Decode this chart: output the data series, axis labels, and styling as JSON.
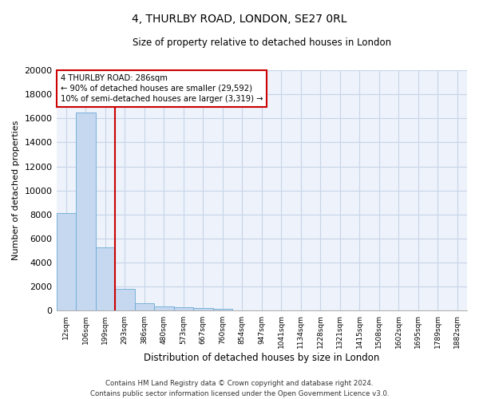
{
  "title": "4, THURLBY ROAD, LONDON, SE27 0RL",
  "subtitle": "Size of property relative to detached houses in London",
  "xlabel": "Distribution of detached houses by size in London",
  "ylabel": "Number of detached properties",
  "categories": [
    "12sqm",
    "106sqm",
    "199sqm",
    "293sqm",
    "386sqm",
    "480sqm",
    "573sqm",
    "667sqm",
    "760sqm",
    "854sqm",
    "947sqm",
    "1041sqm",
    "1134sqm",
    "1228sqm",
    "1321sqm",
    "1415sqm",
    "1508sqm",
    "1602sqm",
    "1695sqm",
    "1789sqm",
    "1882sqm"
  ],
  "bar_heights": [
    8100,
    16500,
    5300,
    1850,
    650,
    350,
    270,
    215,
    195,
    0,
    0,
    0,
    0,
    0,
    0,
    0,
    0,
    0,
    0,
    0,
    0
  ],
  "bar_color": "#c5d8f0",
  "bar_edge_color": "#6aaad4",
  "vline_x": 2.5,
  "vline_color": "#cc0000",
  "annotation_text": "4 THURLBY ROAD: 286sqm\n← 90% of detached houses are smaller (29,592)\n10% of semi-detached houses are larger (3,319) →",
  "annotation_box_color": "#ffffff",
  "annotation_box_edge": "#cc0000",
  "ylim": [
    0,
    20000
  ],
  "yticks": [
    0,
    2000,
    4000,
    6000,
    8000,
    10000,
    12000,
    14000,
    16000,
    18000,
    20000
  ],
  "footer_line1": "Contains HM Land Registry data © Crown copyright and database right 2024.",
  "footer_line2": "Contains public sector information licensed under the Open Government Licence v3.0.",
  "grid_color": "#c8d4e8",
  "background_color": "#edf2fb"
}
